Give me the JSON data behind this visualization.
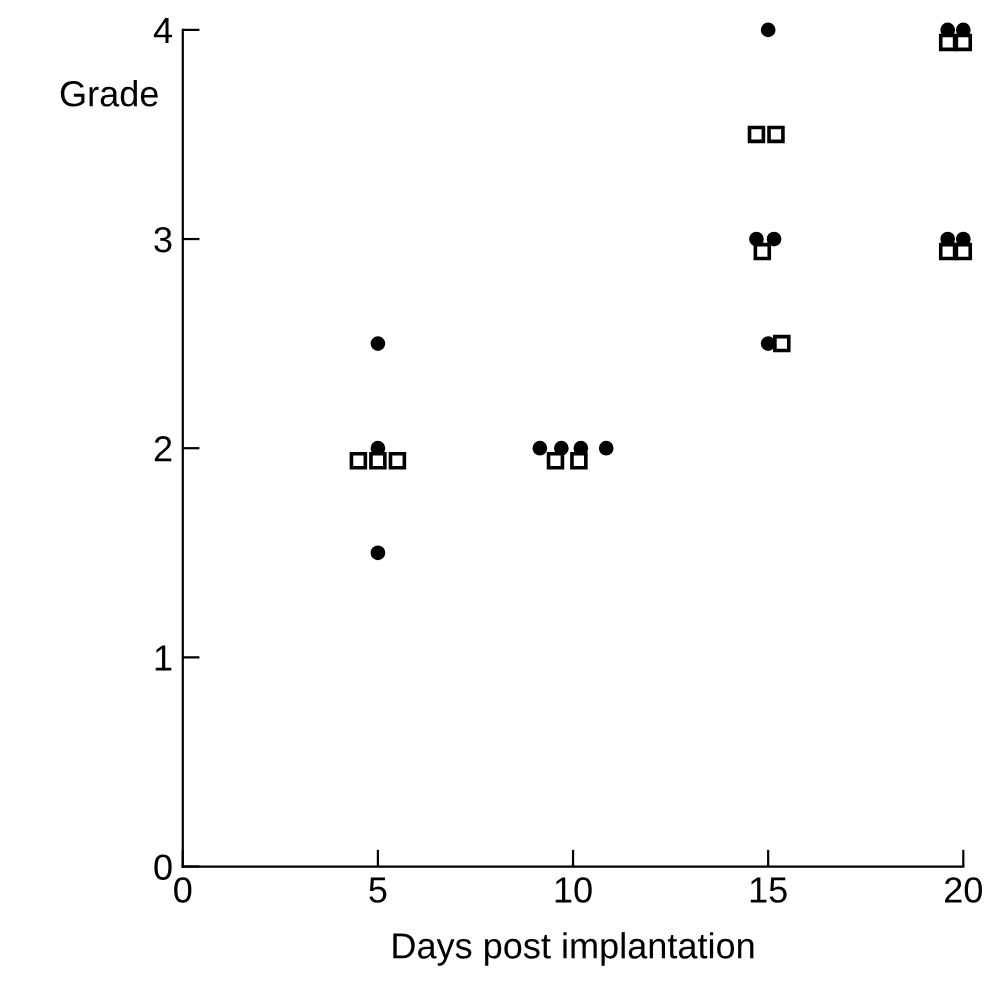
{
  "chart_data": {
    "type": "scatter",
    "xlabel": "Days post implantation",
    "ylabel": "Grade",
    "xlim": [
      0,
      20
    ],
    "ylim": [
      0,
      4
    ],
    "xticks": [
      0,
      5,
      10,
      15,
      20
    ],
    "yticks": [
      0,
      1,
      2,
      3,
      4
    ],
    "grid": false,
    "legend": false,
    "series": [
      {
        "color": "#000000",
        "marker": "circle",
        "x": [
          5,
          5,
          5,
          9.15,
          9.7,
          10.2,
          10.85,
          15.0,
          14.7,
          15.15,
          15.0,
          19.6,
          20.0,
          19.6,
          20.0
        ],
        "values": [
          2.5,
          2.0,
          1.5,
          2.0,
          2.0,
          2.0,
          2.0,
          4.0,
          3.0,
          3.0,
          2.5,
          4.0,
          4.0,
          3.0,
          3.0
        ]
      },
      {
        "color": "#000000",
        "marker": "square",
        "x": [
          4.5,
          5.0,
          5.5,
          9.55,
          10.15,
          14.7,
          15.2,
          14.85,
          15.35,
          19.6,
          20.0,
          19.6,
          20.0
        ],
        "values": [
          1.94,
          1.94,
          1.94,
          1.94,
          1.94,
          3.5,
          3.5,
          2.94,
          2.5,
          3.94,
          3.94,
          2.94,
          2.94
        ]
      }
    ]
  }
}
